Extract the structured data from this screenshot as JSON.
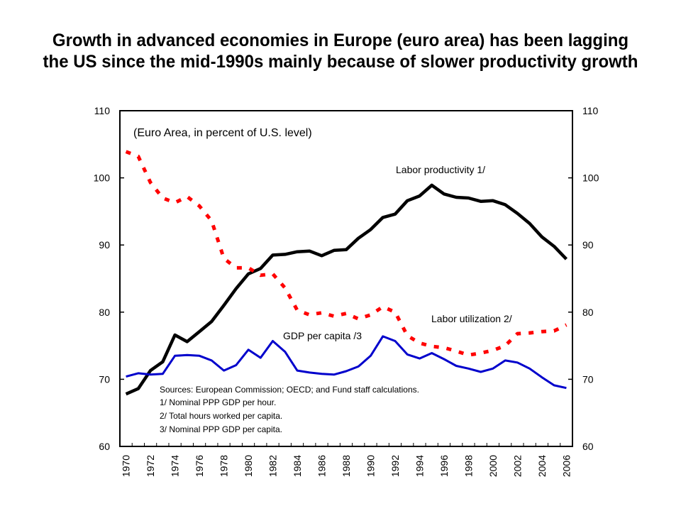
{
  "chart_data": {
    "type": "line",
    "title": "Growth in advanced economies in Europe (euro area) has been lagging the US since the mid-1990s mainly because of slower productivity growth",
    "subtitle": "(Euro Area, in percent of U.S. level)",
    "xlabel": "",
    "ylabel": "",
    "ylim": [
      60,
      110
    ],
    "yticks": [
      60,
      70,
      80,
      90,
      100,
      110
    ],
    "y2ticks": [
      60,
      70,
      80,
      90,
      100,
      110
    ],
    "x": [
      1970,
      1971,
      1972,
      1973,
      1974,
      1975,
      1976,
      1977,
      1978,
      1979,
      1980,
      1981,
      1982,
      1983,
      1984,
      1985,
      1986,
      1987,
      1988,
      1989,
      1990,
      1991,
      1992,
      1993,
      1994,
      1995,
      1996,
      1997,
      1998,
      1999,
      2000,
      2001,
      2002,
      2003,
      2004,
      2005,
      2006
    ],
    "xtick_labels": [
      "1970",
      "1972",
      "1974",
      "1976",
      "1978",
      "1980",
      "1982",
      "1984",
      "1986",
      "1988",
      "1990",
      "1992",
      "1994",
      "1996",
      "1998",
      "2000",
      "2002",
      "2004",
      "2006"
    ],
    "grid": false,
    "series": [
      {
        "name": "Labor productivity 1/",
        "color": "#000000",
        "style": "solid",
        "values": [
          67.8,
          68.6,
          71.3,
          72.6,
          76.6,
          75.6,
          77.1,
          78.6,
          81.0,
          83.5,
          85.7,
          86.5,
          88.5,
          88.6,
          89.0,
          89.1,
          88.4,
          89.2,
          89.3,
          91.0,
          92.3,
          94.1,
          94.6,
          96.6,
          97.3,
          98.9,
          97.6,
          97.1,
          97.0,
          96.5,
          96.6,
          96.0,
          94.7,
          93.2,
          91.2,
          89.8,
          87.9
        ]
      },
      {
        "name": "Labor utilization 2/",
        "color": "#ff0000",
        "style": "dashed",
        "values": [
          103.9,
          103.2,
          99.3,
          97.0,
          96.3,
          97.2,
          95.8,
          93.6,
          88.0,
          86.6,
          86.6,
          85.5,
          85.7,
          83.6,
          80.3,
          79.6,
          79.9,
          79.4,
          79.8,
          79.0,
          79.6,
          80.8,
          80.0,
          76.5,
          75.4,
          74.9,
          74.7,
          74.2,
          73.6,
          73.9,
          74.3,
          75.0,
          76.8,
          76.9,
          77.1,
          77.2,
          78.1
        ]
      },
      {
        "name": "GDP per capita /3",
        "color": "#0000cc",
        "style": "solid",
        "values": [
          70.4,
          70.9,
          70.7,
          70.8,
          73.5,
          73.6,
          73.5,
          72.8,
          71.3,
          72.1,
          74.4,
          73.2,
          75.7,
          74.1,
          71.3,
          71.0,
          70.8,
          70.7,
          71.2,
          71.9,
          73.5,
          76.4,
          75.7,
          73.7,
          73.1,
          73.9,
          73.0,
          72.0,
          71.6,
          71.1,
          71.6,
          72.8,
          72.5,
          71.6,
          70.3,
          69.1,
          68.7
        ]
      }
    ],
    "annotations": [
      "Sources:  European Commission; OECD; and Fund staff calculations.",
      "1/ Nominal PPP GDP per hour.",
      "2/ Total hours worked per capita.",
      "3/ Nominal PPP GDP per capita."
    ]
  }
}
